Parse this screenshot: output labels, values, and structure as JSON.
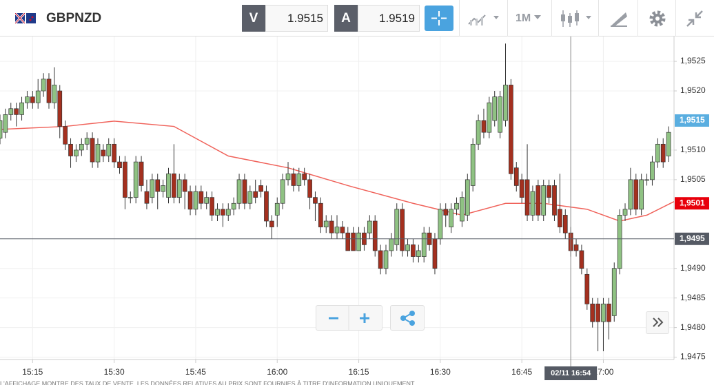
{
  "toolbar": {
    "symbol": "GBPNZD",
    "bid_label": "V",
    "bid": 1.9515,
    "ask_label": "A",
    "ask": 1.9519,
    "timeframe": "1M"
  },
  "chart_data": {
    "type": "candlestick",
    "x": [
      "15:09",
      "15:10",
      "15:11",
      "15:12",
      "15:13",
      "15:14",
      "15:15",
      "15:16",
      "15:17",
      "15:18",
      "15:19",
      "15:20",
      "15:21",
      "15:22",
      "15:23",
      "15:24",
      "15:25",
      "15:26",
      "15:27",
      "15:28",
      "15:29",
      "15:30",
      "15:31",
      "15:32",
      "15:33",
      "15:34",
      "15:35",
      "15:36",
      "15:37",
      "15:38",
      "15:39",
      "15:40",
      "15:41",
      "15:42",
      "15:43",
      "15:44",
      "15:45",
      "15:46",
      "15:47",
      "15:48",
      "15:49",
      "15:50",
      "15:51",
      "15:52",
      "15:53",
      "15:54",
      "15:55",
      "15:56",
      "15:57",
      "15:58",
      "15:59",
      "16:00",
      "16:01",
      "16:02",
      "16:03",
      "16:04",
      "16:05",
      "16:06",
      "16:07",
      "16:08",
      "16:09",
      "16:10",
      "16:11",
      "16:12",
      "16:13",
      "16:14",
      "16:15",
      "16:16",
      "16:17",
      "16:18",
      "16:19",
      "16:20",
      "16:21",
      "16:22",
      "16:23",
      "16:24",
      "16:25",
      "16:26",
      "16:27",
      "16:28",
      "16:29",
      "16:30",
      "16:31",
      "16:32",
      "16:33",
      "16:34",
      "16:35",
      "16:36",
      "16:37",
      "16:38",
      "16:39",
      "16:40",
      "16:41",
      "16:42",
      "16:43",
      "16:44",
      "16:45",
      "16:46",
      "16:47",
      "16:48",
      "16:49",
      "16:50",
      "16:51",
      "16:52",
      "16:53",
      "16:54",
      "16:55",
      "16:56",
      "16:57",
      "16:58",
      "16:59",
      "17:00",
      "17:01",
      "17:02",
      "17:03",
      "17:04",
      "17:05",
      "17:06",
      "17:07",
      "17:08",
      "17:09",
      "17:10",
      "17:11",
      "17:12"
    ],
    "open": [
      1.9512,
      1.9513,
      1.9516,
      1.9517,
      1.9516,
      1.9518,
      1.9519,
      1.9518,
      1.952,
      1.9522,
      1.9518,
      1.952,
      1.9514,
      1.9511,
      1.9509,
      1.951,
      1.9511,
      1.9512,
      1.9508,
      1.951,
      1.9509,
      1.9511,
      1.9508,
      1.9508,
      1.9502,
      1.9502,
      1.9508,
      1.9503,
      1.9502,
      1.9505,
      1.9503,
      1.9502,
      1.9506,
      1.9502,
      1.9505,
      1.9503,
      1.95,
      1.9503,
      1.9501,
      1.9502,
      1.9499,
      1.95,
      1.9499,
      1.95,
      1.9501,
      1.9505,
      1.9501,
      1.9503,
      1.9504,
      1.9503,
      1.9498,
      1.9499,
      1.9501,
      1.9505,
      1.9506,
      1.9504,
      1.9506,
      1.9505,
      1.9502,
      1.9501,
      1.9497,
      1.9498,
      1.9496,
      1.9497,
      1.9496,
      1.9496,
      1.9493,
      1.9496,
      1.9496,
      1.9498,
      1.9493,
      1.949,
      1.9493,
      1.9494,
      1.95,
      1.9493,
      1.9494,
      1.9492,
      1.9492,
      1.9496,
      1.9495,
      1.9495,
      1.95,
      1.9497,
      1.95,
      1.9498,
      1.9499,
      1.9504,
      1.9511,
      1.9515,
      1.9513,
      1.9515,
      1.9513,
      1.9515,
      1.9521,
      1.9507,
      1.9505,
      1.9505,
      1.9499,
      1.9504,
      1.9499,
      1.9504,
      1.9504,
      1.95,
      1.9499,
      1.9496,
      1.9494,
      1.9493,
      1.9489,
      1.9484,
      1.9484,
      1.9481,
      1.9484,
      1.9482,
      1.949,
      1.9499,
      1.95,
      1.9505,
      1.95,
      1.9505,
      1.9505,
      1.9508,
      1.9511,
      1.9509
    ],
    "high": [
      1.9516,
      1.9517,
      1.9518,
      1.9518,
      1.9519,
      1.952,
      1.952,
      1.9522,
      1.9523,
      1.9523,
      1.9524,
      1.9521,
      1.9515,
      1.9512,
      1.9511,
      1.9512,
      1.9513,
      1.9513,
      1.9512,
      1.9511,
      1.9512,
      1.9512,
      1.9509,
      1.9509,
      1.9503,
      1.9509,
      1.9509,
      1.9505,
      1.9506,
      1.9506,
      1.9505,
      1.9507,
      1.9511,
      1.9506,
      1.9506,
      1.9504,
      1.9504,
      1.9504,
      1.9503,
      1.9503,
      1.9501,
      1.9501,
      1.9501,
      1.9502,
      1.9506,
      1.9506,
      1.9504,
      1.9505,
      1.9505,
      1.9504,
      1.9499,
      1.9502,
      1.9506,
      1.9508,
      1.9507,
      1.9507,
      1.9507,
      1.9506,
      1.9503,
      1.9502,
      1.9499,
      1.9499,
      1.9499,
      1.9498,
      1.9497,
      1.9497,
      1.9497,
      1.9497,
      1.9499,
      1.9499,
      1.9494,
      1.9494,
      1.9496,
      1.9501,
      1.9501,
      1.9495,
      1.9495,
      1.9494,
      1.9497,
      1.9497,
      1.9496,
      1.9501,
      1.9501,
      1.9501,
      1.9502,
      1.9503,
      1.9506,
      1.9512,
      1.9516,
      1.9517,
      1.9519,
      1.952,
      1.952,
      1.9528,
      1.9522,
      1.9508,
      1.9506,
      1.9511,
      1.9504,
      1.9505,
      1.9505,
      1.9505,
      1.9505,
      1.9506,
      1.95,
      1.9497,
      1.9495,
      1.9494,
      1.949,
      1.9485,
      1.9485,
      1.9485,
      1.9485,
      1.9491,
      1.95,
      1.9501,
      1.9507,
      1.9506,
      1.9506,
      1.9506,
      1.9509,
      1.9512,
      1.9512,
      1.9514
    ],
    "low": [
      1.9511,
      1.9512,
      1.9515,
      1.9514,
      1.9515,
      1.9517,
      1.9517,
      1.9517,
      1.9519,
      1.9517,
      1.9517,
      1.9512,
      1.951,
      1.9507,
      1.9508,
      1.9509,
      1.951,
      1.9507,
      1.9507,
      1.9508,
      1.9508,
      1.9507,
      1.9506,
      1.95,
      1.9501,
      1.9501,
      1.9503,
      1.95,
      1.9501,
      1.95,
      1.9502,
      1.9501,
      1.9501,
      1.9501,
      1.95,
      1.9499,
      1.9499,
      1.95,
      1.95,
      1.9498,
      1.9498,
      1.9497,
      1.9498,
      1.9499,
      1.95,
      1.95,
      1.95,
      1.9501,
      1.9502,
      1.9497,
      1.9495,
      1.9497,
      1.95,
      1.9504,
      1.9503,
      1.9503,
      1.9504,
      1.95,
      1.9498,
      1.9496,
      1.9496,
      1.9495,
      1.9495,
      1.9495,
      1.9493,
      1.9493,
      1.9493,
      1.9493,
      1.9495,
      1.9492,
      1.9489,
      1.9489,
      1.9492,
      1.9493,
      1.9492,
      1.9492,
      1.9491,
      1.9491,
      1.9491,
      1.9493,
      1.9489,
      1.9494,
      1.9497,
      1.9496,
      1.9499,
      1.9497,
      1.9498,
      1.9503,
      1.951,
      1.9512,
      1.9512,
      1.9514,
      1.9512,
      1.9514,
      1.9505,
      1.9503,
      1.9501,
      1.9498,
      1.9498,
      1.9498,
      1.9498,
      1.9501,
      1.9498,
      1.9496,
      1.9495,
      1.9492,
      1.9492,
      1.9489,
      1.9483,
      1.948,
      1.9476,
      1.9476,
      1.9478,
      1.9481,
      1.9489,
      1.9498,
      1.9499,
      1.9499,
      1.9499,
      1.9504,
      1.9504,
      1.9507,
      1.9507,
      1.9508
    ],
    "close": [
      1.9515,
      1.9516,
      1.9517,
      1.9516,
      1.9518,
      1.9519,
      1.9518,
      1.952,
      1.9522,
      1.9518,
      1.9521,
      1.9514,
      1.9511,
      1.9509,
      1.951,
      1.9511,
      1.9512,
      1.9508,
      1.9511,
      1.9509,
      1.9511,
      1.9508,
      1.9507,
      1.9502,
      1.9502,
      1.9508,
      1.9504,
      1.9501,
      1.9505,
      1.9503,
      1.9504,
      1.9506,
      1.9502,
      1.9505,
      1.9503,
      1.95,
      1.9503,
      1.9501,
      1.9502,
      1.9499,
      1.95,
      1.9499,
      1.95,
      1.9501,
      1.9505,
      1.9501,
      1.9503,
      1.9502,
      1.9503,
      1.9498,
      1.9497,
      1.9501,
      1.9505,
      1.9506,
      1.9504,
      1.9506,
      1.9505,
      1.9502,
      1.9501,
      1.9497,
      1.9498,
      1.9496,
      1.9497,
      1.9496,
      1.9493,
      1.9493,
      1.9496,
      1.9494,
      1.9498,
      1.9493,
      1.949,
      1.9493,
      1.9495,
      1.95,
      1.9493,
      1.9494,
      1.9492,
      1.9493,
      1.9496,
      1.9494,
      1.949,
      1.95,
      1.9499,
      1.95,
      1.9501,
      1.9502,
      1.9505,
      1.9511,
      1.9515,
      1.9513,
      1.9518,
      1.9519,
      1.9519,
      1.9521,
      1.9506,
      1.9504,
      1.9502,
      1.9499,
      1.9503,
      1.9499,
      1.9504,
      1.9502,
      1.9499,
      1.9497,
      1.9496,
      1.9493,
      1.9493,
      1.949,
      1.9484,
      1.9481,
      1.9481,
      1.9484,
      1.9481,
      1.949,
      1.9499,
      1.95,
      1.9505,
      1.95,
      1.9505,
      1.9505,
      1.9508,
      1.9511,
      1.9508,
      1.9513
    ],
    "up_color": "#8fc283",
    "down_color": "#a4301f",
    "ma": {
      "color": "#f0625a",
      "x": [
        "15:09",
        "15:21",
        "15:30",
        "15:41",
        "15:51",
        "16:02",
        "16:13",
        "16:25",
        "16:34",
        "16:42",
        "16:49",
        "16:57",
        "17:03",
        "17:08",
        "17:13"
      ],
      "values": [
        1.95135,
        1.9514,
        1.95149,
        1.9514,
        1.9509,
        1.9507,
        1.9504,
        1.9501,
        1.9499,
        1.9501,
        1.9501,
        1.95,
        1.9498,
        1.9499,
        1.95013
      ]
    },
    "xlim": [
      "15:09",
      "17:13"
    ],
    "xticks": [
      "15:15",
      "15:30",
      "15:45",
      "16:00",
      "16:15",
      "16:30",
      "16:45",
      "17:00"
    ],
    "ylim": [
      1.94746,
      1.95292
    ],
    "yticks": [
      {
        "value": 1.9525,
        "label": "1,9525"
      },
      {
        "value": 1.952,
        "label": "1,9520"
      },
      {
        "value": 1.951,
        "label": "1,9510"
      },
      {
        "value": 1.9505,
        "label": "1,9505"
      },
      {
        "value": 1.949,
        "label": "1,9490"
      },
      {
        "value": 1.9485,
        "label": "1,9485"
      },
      {
        "value": 1.948,
        "label": "1,9480"
      },
      {
        "value": 1.9475,
        "label": "1,9475"
      }
    ],
    "grid": true,
    "markers": [
      {
        "value": 1.9515,
        "label": "1,9515",
        "color": "#5aaee0",
        "line": false
      },
      {
        "value": 1.9501,
        "label": "1,9501",
        "color": "#e8000b",
        "line": false
      },
      {
        "value": 1.9495,
        "label": "1,9495",
        "color": "#555a64",
        "line": true
      }
    ],
    "crosshair": {
      "x": "16:54",
      "label": "02/11 16:54"
    }
  },
  "footer": {
    "disclaimer": "L'AFFICHAGE MONTRE DES TAUX DE VENTE. LES DONNÉES RELATIVES AU PRIX SONT FOURNIES À TITRE D'INFORMATION UNIQUEMENT"
  }
}
